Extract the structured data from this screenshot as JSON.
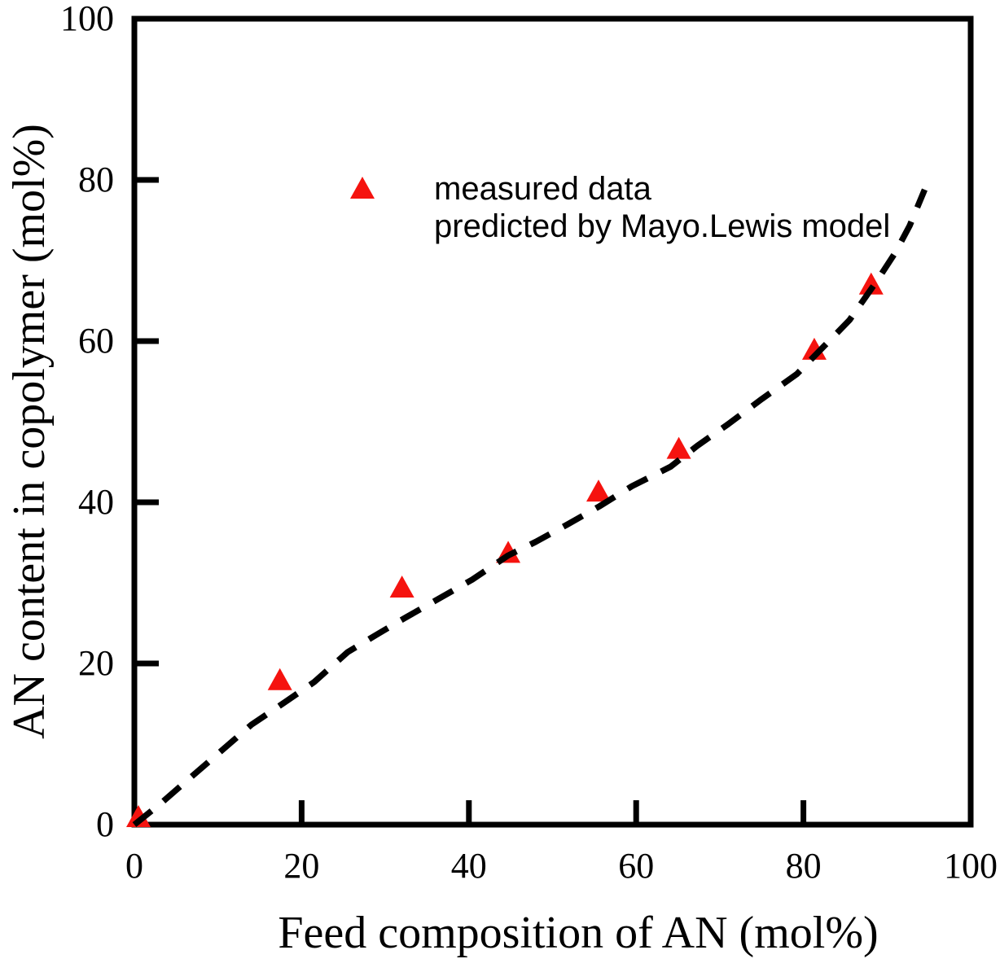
{
  "figure": {
    "background": "#ffffff",
    "axis_color": "#000000",
    "marker_color": "#f5130f",
    "line_color": "#000000"
  },
  "legend": {
    "items": [
      {
        "label": "measured data",
        "marker": "red-triangle-up"
      },
      {
        "label": "predicted by Mayo.Lewis model",
        "marker": "black-dashed-line"
      }
    ]
  },
  "chart_data": {
    "type": "scatter",
    "title": "",
    "xlabel": "Feed composition of AN (mol%)",
    "ylabel": "AN content in copolymer (mol%)",
    "xlim": [
      0,
      100
    ],
    "ylim": [
      0,
      100
    ],
    "xticks": [
      0,
      20,
      40,
      60,
      80,
      100
    ],
    "yticks": [
      0,
      20,
      40,
      60,
      80,
      100
    ],
    "grid": false,
    "legend_position": "upper-left-inside",
    "series": [
      {
        "name": "measured data",
        "type": "scatter",
        "marker": "triangle-up",
        "color": "#f5130f",
        "points": [
          [
            0,
            0
          ],
          [
            17.4,
            17.9
          ],
          [
            32.0,
            29.4
          ],
          [
            44.7,
            33.7
          ],
          [
            55.5,
            41.3
          ],
          [
            65.1,
            46.6
          ],
          [
            81.3,
            58.9
          ],
          [
            88.1,
            67.0
          ]
        ]
      },
      {
        "name": "predicted by Mayo.Lewis model",
        "type": "line",
        "style": "dashed",
        "color": "#000000",
        "points": [
          [
            0,
            0
          ],
          [
            3,
            2.5
          ],
          [
            6,
            5.2
          ],
          [
            10,
            8.8
          ],
          [
            14,
            12.4
          ],
          [
            18,
            15.2
          ],
          [
            21.5,
            17.7
          ],
          [
            25.5,
            21.4
          ],
          [
            29,
            23.6
          ],
          [
            32.6,
            25.8
          ],
          [
            36,
            27.8
          ],
          [
            40.4,
            30.4
          ],
          [
            44.7,
            33.4
          ],
          [
            48,
            35.1
          ],
          [
            51.7,
            37.2
          ],
          [
            55.6,
            39.5
          ],
          [
            59.5,
            42.0
          ],
          [
            64.1,
            44.4
          ],
          [
            67.3,
            47.0
          ],
          [
            71,
            49.7
          ],
          [
            75,
            52.8
          ],
          [
            79.2,
            55.9
          ],
          [
            82.5,
            59.4
          ],
          [
            85.5,
            62.6
          ],
          [
            88.8,
            67.5
          ],
          [
            91,
            71.0
          ],
          [
            92.7,
            74.3
          ],
          [
            94.5,
            78.8
          ]
        ]
      }
    ]
  }
}
